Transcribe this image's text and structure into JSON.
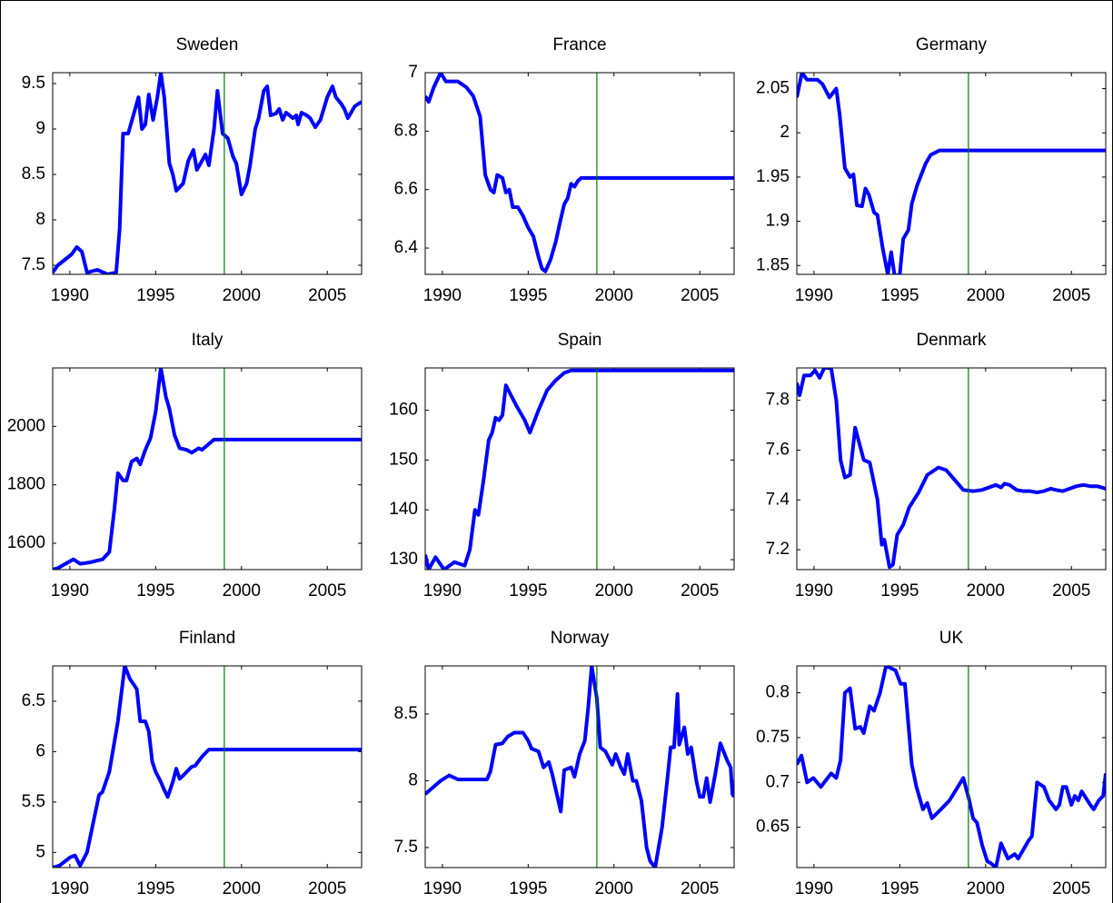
{
  "chart_data": [
    {
      "type": "line",
      "title": "Sweden",
      "color": "#0000ff",
      "reference_line_x": 1999,
      "reference_line_color": "#008000",
      "xlim": [
        1989,
        2007
      ],
      "xticks": [
        1990,
        1995,
        2000,
        2005
      ],
      "ylim": [
        7.4,
        9.62
      ],
      "yticks": [
        7.5,
        8,
        8.5,
        9,
        9.5
      ],
      "x": [
        1989,
        1989.3,
        1990.1,
        1990.4,
        1990.7,
        1991.0,
        1991.6,
        1992.2,
        1992.7,
        1992.9,
        1993.1,
        1993.4,
        1993.7,
        1994.0,
        1994.2,
        1994.4,
        1994.6,
        1994.85,
        1995.1,
        1995.3,
        1995.5,
        1995.8,
        1996.0,
        1996.2,
        1996.6,
        1996.9,
        1997.2,
        1997.4,
        1997.7,
        1997.9,
        1998.1,
        1998.4,
        1998.6,
        1998.9,
        1999.2,
        1999.5,
        1999.7,
        2000.0,
        2000.3,
        2000.5,
        2000.8,
        2001.0,
        2001.3,
        2001.5,
        2001.7,
        2002.0,
        2002.2,
        2002.4,
        2002.6,
        2003.0,
        2003.2,
        2003.3,
        2003.5,
        2003.8,
        2004.0,
        2004.3,
        2004.6,
        2005.0,
        2005.3,
        2005.5,
        2005.8,
        2006.0,
        2006.2,
        2006.6,
        2007.0
      ],
      "values": [
        7.42,
        7.5,
        7.62,
        7.7,
        7.65,
        7.42,
        7.45,
        7.4,
        7.42,
        7.9,
        8.95,
        8.95,
        9.15,
        9.35,
        9.0,
        9.05,
        9.38,
        9.1,
        9.35,
        9.62,
        9.35,
        8.62,
        8.5,
        8.32,
        8.4,
        8.65,
        8.77,
        8.55,
        8.65,
        8.72,
        8.6,
        9.0,
        9.42,
        8.95,
        8.9,
        8.7,
        8.62,
        8.28,
        8.4,
        8.6,
        9.0,
        9.12,
        9.42,
        9.47,
        9.15,
        9.17,
        9.22,
        9.1,
        9.18,
        9.12,
        9.15,
        9.05,
        9.18,
        9.15,
        9.12,
        9.02,
        9.1,
        9.35,
        9.47,
        9.35,
        9.28,
        9.22,
        9.12,
        9.25,
        9.3
      ]
    },
    {
      "type": "line",
      "title": "France",
      "color": "#0000ff",
      "reference_line_x": 1999,
      "reference_line_color": "#008000",
      "xlim": [
        1989,
        2007
      ],
      "xticks": [
        1990,
        1995,
        2000,
        2005
      ],
      "ylim": [
        6.31,
        7
      ],
      "yticks": [
        6.4,
        6.6,
        6.8,
        7
      ],
      "x": [
        1989,
        1989.2,
        1989.5,
        1989.9,
        1990.2,
        1990.9,
        1991.4,
        1991.8,
        1992.2,
        1992.5,
        1992.8,
        1993.0,
        1993.2,
        1993.5,
        1993.7,
        1993.9,
        1994.1,
        1994.4,
        1994.7,
        1995.0,
        1995.3,
        1995.6,
        1995.8,
        1996.0,
        1996.3,
        1996.6,
        1996.9,
        1997.1,
        1997.3,
        1997.5,
        1997.7,
        1997.9,
        1998.1,
        2007
      ],
      "values": [
        6.92,
        6.9,
        6.95,
        7.0,
        6.97,
        6.97,
        6.95,
        6.92,
        6.85,
        6.65,
        6.6,
        6.59,
        6.65,
        6.64,
        6.59,
        6.6,
        6.54,
        6.54,
        6.51,
        6.47,
        6.44,
        6.37,
        6.33,
        6.32,
        6.36,
        6.42,
        6.5,
        6.55,
        6.57,
        6.62,
        6.61,
        6.63,
        6.64,
        6.64
      ]
    },
    {
      "type": "line",
      "title": "Germany",
      "color": "#0000ff",
      "reference_line_x": 1999,
      "reference_line_color": "#008000",
      "xlim": [
        1989,
        2007
      ],
      "xticks": [
        1990,
        1995,
        2000,
        2005
      ],
      "ylim": [
        1.84,
        2.068
      ],
      "yticks": [
        1.85,
        1.9,
        1.95,
        2,
        2.05
      ],
      "x": [
        1989,
        1989.3,
        1989.6,
        1990.2,
        1990.5,
        1990.9,
        1991.3,
        1991.5,
        1991.8,
        1992.1,
        1992.3,
        1992.5,
        1992.8,
        1993.0,
        1993.2,
        1993.5,
        1993.7,
        1994.0,
        1994.3,
        1994.5,
        1994.7,
        1995.0,
        1995.2,
        1995.5,
        1995.7,
        1996.0,
        1996.2,
        1996.5,
        1996.8,
        1997.3,
        2007
      ],
      "values": [
        2.04,
        2.068,
        2.06,
        2.06,
        2.055,
        2.04,
        2.05,
        2.02,
        1.96,
        1.95,
        1.953,
        1.918,
        1.917,
        1.937,
        1.93,
        1.91,
        1.907,
        1.87,
        1.84,
        1.865,
        1.838,
        1.84,
        1.88,
        1.89,
        1.92,
        1.94,
        1.95,
        1.965,
        1.975,
        1.98,
        1.98
      ]
    },
    {
      "type": "line",
      "title": "Italy",
      "color": "#0000ff",
      "reference_line_x": 1999,
      "reference_line_color": "#008000",
      "xlim": [
        1989,
        2007
      ],
      "xticks": [
        1990,
        1995,
        2000,
        2005
      ],
      "ylim": [
        1510,
        2200
      ],
      "yticks": [
        1600,
        1800,
        2000
      ],
      "x": [
        1989,
        1989.3,
        1990.2,
        1990.6,
        1991.2,
        1991.9,
        1992.3,
        1992.6,
        1992.8,
        1993.1,
        1993.3,
        1993.6,
        1993.9,
        1994.1,
        1994.4,
        1994.7,
        1995.0,
        1995.3,
        1995.6,
        1995.8,
        1996.1,
        1996.4,
        1996.8,
        1997.1,
        1997.5,
        1997.7,
        1998.0,
        1998.4,
        2007
      ],
      "values": [
        1510,
        1515,
        1545,
        1530,
        1535,
        1545,
        1570,
        1720,
        1840,
        1815,
        1815,
        1880,
        1890,
        1870,
        1920,
        1960,
        2050,
        2200,
        2100,
        2060,
        1970,
        1925,
        1920,
        1910,
        1925,
        1920,
        1935,
        1955,
        1955
      ]
    },
    {
      "type": "line",
      "title": "Spain",
      "color": "#0000ff",
      "reference_line_x": 1999,
      "reference_line_color": "#008000",
      "xlim": [
        1989,
        2007
      ],
      "xticks": [
        1990,
        1995,
        2000,
        2005
      ],
      "ylim": [
        128,
        168.5
      ],
      "yticks": [
        130,
        140,
        150,
        160
      ],
      "x": [
        1989,
        1989.2,
        1989.6,
        1990.1,
        1990.7,
        1991.3,
        1991.6,
        1991.9,
        1992.1,
        1992.4,
        1992.7,
        1992.9,
        1993.1,
        1993.3,
        1993.5,
        1993.7,
        1994.3,
        1994.8,
        1995.1,
        1995.6,
        1996.1,
        1996.6,
        1997.1,
        1997.5,
        2007
      ],
      "values": [
        131,
        128,
        130.5,
        128,
        129.5,
        128.8,
        132,
        140,
        139,
        146,
        154,
        155.5,
        158.5,
        158,
        159,
        165,
        161,
        158,
        155.5,
        160,
        164,
        166,
        167.5,
        168,
        168
      ]
    },
    {
      "type": "line",
      "title": "Denmark",
      "color": "#0000ff",
      "reference_line_x": 1999,
      "reference_line_color": "#008000",
      "xlim": [
        1989,
        2007
      ],
      "xticks": [
        1990,
        1995,
        2000,
        2005
      ],
      "ylim": [
        7.12,
        7.93
      ],
      "yticks": [
        7.2,
        7.4,
        7.6,
        7.8
      ],
      "x": [
        1989,
        1989.16,
        1989.43,
        1989.8,
        1990.06,
        1990.33,
        1990.6,
        1991.0,
        1991.3,
        1991.55,
        1991.8,
        1992.1,
        1992.4,
        1992.9,
        1993.25,
        1993.7,
        1993.95,
        1994.1,
        1994.4,
        1994.6,
        1994.85,
        1995.2,
        1995.55,
        1996.1,
        1996.6,
        1997.25,
        1997.7,
        1998.2,
        1998.7,
        1999.27,
        1999.8,
        2000.2,
        2000.6,
        2000.9,
        2001.1,
        2001.4,
        2001.8,
        2002.2,
        2002.6,
        2003.0,
        2003.4,
        2003.8,
        2004.1,
        2004.5,
        2004.9,
        2005.3,
        2005.7,
        2006.1,
        2006.5,
        2007
      ],
      "values": [
        7.87,
        7.82,
        7.9,
        7.9,
        7.92,
        7.89,
        7.93,
        7.93,
        7.8,
        7.56,
        7.49,
        7.5,
        7.69,
        7.56,
        7.55,
        7.4,
        7.22,
        7.24,
        7.13,
        7.14,
        7.26,
        7.3,
        7.37,
        7.43,
        7.5,
        7.53,
        7.52,
        7.48,
        7.44,
        7.435,
        7.44,
        7.45,
        7.46,
        7.45,
        7.465,
        7.46,
        7.44,
        7.435,
        7.435,
        7.43,
        7.435,
        7.445,
        7.44,
        7.435,
        7.445,
        7.455,
        7.46,
        7.455,
        7.455,
        7.445
      ]
    },
    {
      "type": "line",
      "title": "Finland",
      "color": "#0000ff",
      "reference_line_x": 1999,
      "reference_line_color": "#008000",
      "xlim": [
        1989,
        2007
      ],
      "xticks": [
        1990,
        1995,
        2000,
        2005
      ],
      "ylim": [
        4.85,
        6.85
      ],
      "yticks": [
        5,
        5.5,
        6,
        6.5
      ],
      "x": [
        1989,
        1989.4,
        1990.0,
        1990.3,
        1990.6,
        1991.0,
        1991.7,
        1991.9,
        1992.3,
        1992.8,
        1993.2,
        1993.5,
        1993.9,
        1994.1,
        1994.4,
        1994.6,
        1994.8,
        1995.0,
        1995.3,
        1995.5,
        1995.7,
        1996.0,
        1996.2,
        1996.4,
        1996.7,
        1997.1,
        1997.3,
        1997.7,
        1998.1,
        2007
      ],
      "values": [
        4.85,
        4.87,
        4.95,
        4.97,
        4.87,
        5.0,
        5.57,
        5.6,
        5.8,
        6.3,
        6.85,
        6.72,
        6.62,
        6.3,
        6.3,
        6.2,
        5.9,
        5.8,
        5.7,
        5.62,
        5.55,
        5.7,
        5.83,
        5.73,
        5.78,
        5.85,
        5.86,
        5.95,
        6.02,
        6.02
      ]
    },
    {
      "type": "line",
      "title": "Norway",
      "color": "#0000ff",
      "reference_line_x": 1999,
      "reference_line_color": "#008000",
      "xlim": [
        1989,
        2007
      ],
      "xticks": [
        1990,
        1995,
        2000,
        2005
      ],
      "ylim": [
        7.35,
        8.86
      ],
      "yticks": [
        7.5,
        8,
        8.5
      ],
      "x": [
        1989,
        1989.9,
        1990.4,
        1990.9,
        1991.8,
        1992.6,
        1992.8,
        1993.1,
        1993.5,
        1993.8,
        1994.2,
        1994.7,
        1995.0,
        1995.2,
        1995.6,
        1995.9,
        1996.2,
        1996.4,
        1996.9,
        1997.1,
        1997.5,
        1997.7,
        1998.0,
        1998.3,
        1998.5,
        1998.7,
        1999.0,
        1999.2,
        1999.5,
        1999.9,
        2000.1,
        2000.4,
        2000.6,
        2000.8,
        2001.1,
        2001.3,
        2001.6,
        2001.9,
        2002.1,
        2002.4,
        2002.8,
        2003.1,
        2003.3,
        2003.5,
        2003.7,
        2003.8,
        2004.1,
        2004.3,
        2004.5,
        2004.8,
        2005.0,
        2005.2,
        2005.4,
        2005.6,
        2005.9,
        2006.2,
        2006.6,
        2006.8,
        2006.9,
        2007
      ],
      "values": [
        7.9,
        8.0,
        8.04,
        8.01,
        8.01,
        8.01,
        8.07,
        8.27,
        8.28,
        8.33,
        8.36,
        8.36,
        8.3,
        8.24,
        8.22,
        8.1,
        8.14,
        8.05,
        7.77,
        8.08,
        8.1,
        8.03,
        8.2,
        8.3,
        8.55,
        8.86,
        8.62,
        8.25,
        8.22,
        8.12,
        8.2,
        8.1,
        8.05,
        8.2,
        8.0,
        8.0,
        7.85,
        7.5,
        7.4,
        7.35,
        7.65,
        8.0,
        8.25,
        8.25,
        8.65,
        8.27,
        8.4,
        8.2,
        8.25,
        8.0,
        7.88,
        7.88,
        8.02,
        7.84,
        8.05,
        8.28,
        8.15,
        8.1,
        7.9,
        7.88
      ]
    },
    {
      "type": "line",
      "title": "UK",
      "color": "#0000ff",
      "reference_line_x": 1999,
      "reference_line_color": "#008000",
      "xlim": [
        1989,
        2007
      ],
      "xticks": [
        1990,
        1995,
        2000,
        2005
      ],
      "ylim": [
        0.605,
        0.83
      ],
      "yticks": [
        0.65,
        0.7,
        0.75,
        0.8
      ],
      "x": [
        1989,
        1989.27,
        1989.6,
        1989.96,
        1990.4,
        1991.0,
        1991.3,
        1991.55,
        1991.8,
        1992.1,
        1992.4,
        1992.7,
        1992.9,
        1993.25,
        1993.5,
        1993.85,
        1994.2,
        1994.75,
        1995.05,
        1995.3,
        1995.7,
        1995.97,
        1996.35,
        1996.6,
        1996.87,
        1997.4,
        1997.9,
        1998.7,
        1999.05,
        1999.27,
        1999.5,
        1999.8,
        2000.1,
        2000.3,
        2000.6,
        2000.9,
        2001.3,
        2001.7,
        2001.9,
        2002.5,
        2002.7,
        2003.0,
        2003.4,
        2003.7,
        2004.1,
        2004.3,
        2004.5,
        2004.7,
        2005.0,
        2005.2,
        2005.4,
        2005.6,
        2006.1,
        2006.3,
        2006.6,
        2006.85,
        2007
      ],
      "values": [
        0.72,
        0.73,
        0.7,
        0.705,
        0.695,
        0.71,
        0.705,
        0.725,
        0.8,
        0.805,
        0.76,
        0.762,
        0.755,
        0.785,
        0.78,
        0.8,
        0.83,
        0.825,
        0.81,
        0.81,
        0.72,
        0.695,
        0.67,
        0.677,
        0.66,
        0.67,
        0.68,
        0.705,
        0.68,
        0.66,
        0.655,
        0.63,
        0.612,
        0.61,
        0.605,
        0.632,
        0.615,
        0.62,
        0.615,
        0.635,
        0.64,
        0.7,
        0.695,
        0.68,
        0.67,
        0.675,
        0.695,
        0.695,
        0.675,
        0.685,
        0.68,
        0.69,
        0.675,
        0.67,
        0.68,
        0.685,
        0.71
      ]
    }
  ]
}
